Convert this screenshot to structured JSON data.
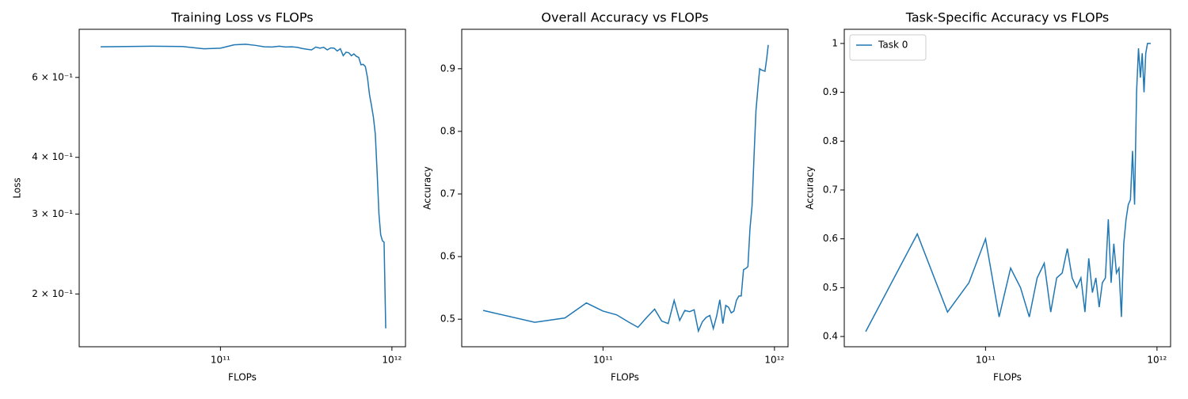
{
  "chart_data": [
    {
      "type": "line",
      "title": "Training Loss vs FLOPs",
      "xlabel": "FLOPs",
      "ylabel": "Loss",
      "xscale": "log",
      "yscale": "log",
      "x": [
        20000000000.0,
        40000000000.0,
        60000000000.0,
        80000000000.0,
        100000000000.0,
        120000000000.0,
        140000000000.0,
        160000000000.0,
        180000000000.0,
        200000000000.0,
        220000000000.0,
        240000000000.0,
        260000000000.0,
        280000000000.0,
        300000000000.0,
        320000000000.0,
        340000000000.0,
        360000000000.0,
        380000000000.0,
        400000000000.0,
        420000000000.0,
        440000000000.0,
        460000000000.0,
        480000000000.0,
        500000000000.0,
        520000000000.0,
        540000000000.0,
        560000000000.0,
        580000000000.0,
        600000000000.0,
        620000000000.0,
        640000000000.0,
        660000000000.0,
        680000000000.0,
        700000000000.0,
        720000000000.0,
        740000000000.0,
        760000000000.0,
        780000000000.0,
        800000000000.0,
        820000000000.0,
        840000000000.0,
        860000000000.0,
        880000000000.0,
        900000000000.0,
        920000000000.0
      ],
      "series": [
        {
          "color": "#1f77b4",
          "values": [
            0.701,
            0.703,
            0.702,
            0.694,
            0.696,
            0.708,
            0.71,
            0.706,
            0.701,
            0.7,
            0.703,
            0.7,
            0.701,
            0.699,
            0.695,
            0.692,
            0.69,
            0.7,
            0.696,
            0.699,
            0.69,
            0.697,
            0.696,
            0.686,
            0.694,
            0.67,
            0.682,
            0.68,
            0.67,
            0.676,
            0.668,
            0.664,
            0.64,
            0.641,
            0.634,
            0.6,
            0.55,
            0.52,
            0.49,
            0.45,
            0.37,
            0.3,
            0.27,
            0.262,
            0.26,
            0.168
          ]
        }
      ],
      "xlim": [
        15000000000.0,
        1200000000000.0
      ],
      "ylim": [
        0.153,
        0.766
      ],
      "xticks": [
        {
          "value": 100000000000.0,
          "label": "10¹¹"
        },
        {
          "value": 1000000000000.0,
          "label": "10¹²"
        }
      ],
      "yticks": [
        {
          "value": 0.2,
          "label": "2 × 10⁻¹"
        },
        {
          "value": 0.3,
          "label": "3 × 10⁻¹"
        },
        {
          "value": 0.4,
          "label": "4 × 10⁻¹"
        },
        {
          "value": 0.6,
          "label": "6 × 10⁻¹"
        }
      ]
    },
    {
      "type": "line",
      "title": "Overall Accuracy vs FLOPs",
      "xlabel": "FLOPs",
      "ylabel": "Accuracy",
      "xscale": "log",
      "yscale": "linear",
      "x": [
        20000000000.0,
        40000000000.0,
        60000000000.0,
        80000000000.0,
        100000000000.0,
        120000000000.0,
        140000000000.0,
        160000000000.0,
        180000000000.0,
        200000000000.0,
        220000000000.0,
        240000000000.0,
        260000000000.0,
        280000000000.0,
        300000000000.0,
        320000000000.0,
        340000000000.0,
        360000000000.0,
        380000000000.0,
        400000000000.0,
        420000000000.0,
        440000000000.0,
        460000000000.0,
        480000000000.0,
        500000000000.0,
        520000000000.0,
        540000000000.0,
        560000000000.0,
        580000000000.0,
        600000000000.0,
        620000000000.0,
        640000000000.0,
        660000000000.0,
        680000000000.0,
        700000000000.0,
        720000000000.0,
        740000000000.0,
        760000000000.0,
        780000000000.0,
        800000000000.0,
        820000000000.0,
        840000000000.0,
        860000000000.0,
        880000000000.0,
        900000000000.0,
        920000000000.0
      ],
      "series": [
        {
          "color": "#1f77b4",
          "values": [
            0.514,
            0.495,
            0.502,
            0.526,
            0.513,
            0.507,
            0.496,
            0.487,
            0.503,
            0.516,
            0.497,
            0.493,
            0.53,
            0.498,
            0.514,
            0.512,
            0.515,
            0.481,
            0.496,
            0.503,
            0.506,
            0.485,
            0.505,
            0.531,
            0.493,
            0.522,
            0.519,
            0.51,
            0.513,
            0.53,
            0.537,
            0.537,
            0.579,
            0.581,
            0.584,
            0.645,
            0.681,
            0.76,
            0.833,
            0.868,
            0.9,
            0.898,
            0.897,
            0.896,
            0.915,
            0.938
          ]
        }
      ],
      "xlim": [
        15000000000.0,
        1200000000000.0
      ],
      "ylim": [
        0.456,
        0.963
      ],
      "xticks": [
        {
          "value": 100000000000.0,
          "label": "10¹¹"
        },
        {
          "value": 1000000000000.0,
          "label": "10¹²"
        }
      ],
      "yticks": [
        0.5,
        0.6,
        0.7,
        0.8,
        0.9
      ]
    },
    {
      "type": "line",
      "title": "Task-Specific Accuracy vs FLOPs",
      "xlabel": "FLOPs",
      "ylabel": "Accuracy",
      "xscale": "log",
      "yscale": "linear",
      "legend": "upper left",
      "x": [
        20000000000.0,
        40000000000.0,
        60000000000.0,
        80000000000.0,
        100000000000.0,
        120000000000.0,
        140000000000.0,
        160000000000.0,
        180000000000.0,
        200000000000.0,
        220000000000.0,
        240000000000.0,
        260000000000.0,
        280000000000.0,
        300000000000.0,
        320000000000.0,
        340000000000.0,
        360000000000.0,
        380000000000.0,
        400000000000.0,
        420000000000.0,
        440000000000.0,
        460000000000.0,
        480000000000.0,
        500000000000.0,
        520000000000.0,
        540000000000.0,
        560000000000.0,
        580000000000.0,
        600000000000.0,
        620000000000.0,
        640000000000.0,
        660000000000.0,
        680000000000.0,
        700000000000.0,
        720000000000.0,
        740000000000.0,
        760000000000.0,
        780000000000.0,
        800000000000.0,
        820000000000.0,
        840000000000.0,
        860000000000.0,
        880000000000.0,
        900000000000.0,
        920000000000.0
      ],
      "series": [
        {
          "name": "Task 0",
          "color": "#1f77b4",
          "values": [
            0.41,
            0.61,
            0.45,
            0.51,
            0.6,
            0.44,
            0.54,
            0.5,
            0.44,
            0.52,
            0.55,
            0.45,
            0.52,
            0.53,
            0.58,
            0.52,
            0.5,
            0.52,
            0.45,
            0.56,
            0.49,
            0.52,
            0.46,
            0.51,
            0.52,
            0.64,
            0.51,
            0.59,
            0.53,
            0.54,
            0.44,
            0.59,
            0.64,
            0.67,
            0.68,
            0.78,
            0.67,
            0.9,
            0.99,
            0.93,
            0.98,
            0.9,
            0.98,
            1.0,
            1.0,
            1.0
          ]
        }
      ],
      "xlim": [
        15000000000.0,
        1200000000000.0
      ],
      "ylim": [
        0.379,
        1.029
      ],
      "xticks": [
        {
          "value": 100000000000.0,
          "label": "10¹¹"
        },
        {
          "value": 1000000000000.0,
          "label": "10¹²"
        }
      ],
      "yticks": [
        0.4,
        0.5,
        0.6,
        0.7,
        0.8,
        0.9,
        1.0
      ]
    }
  ]
}
